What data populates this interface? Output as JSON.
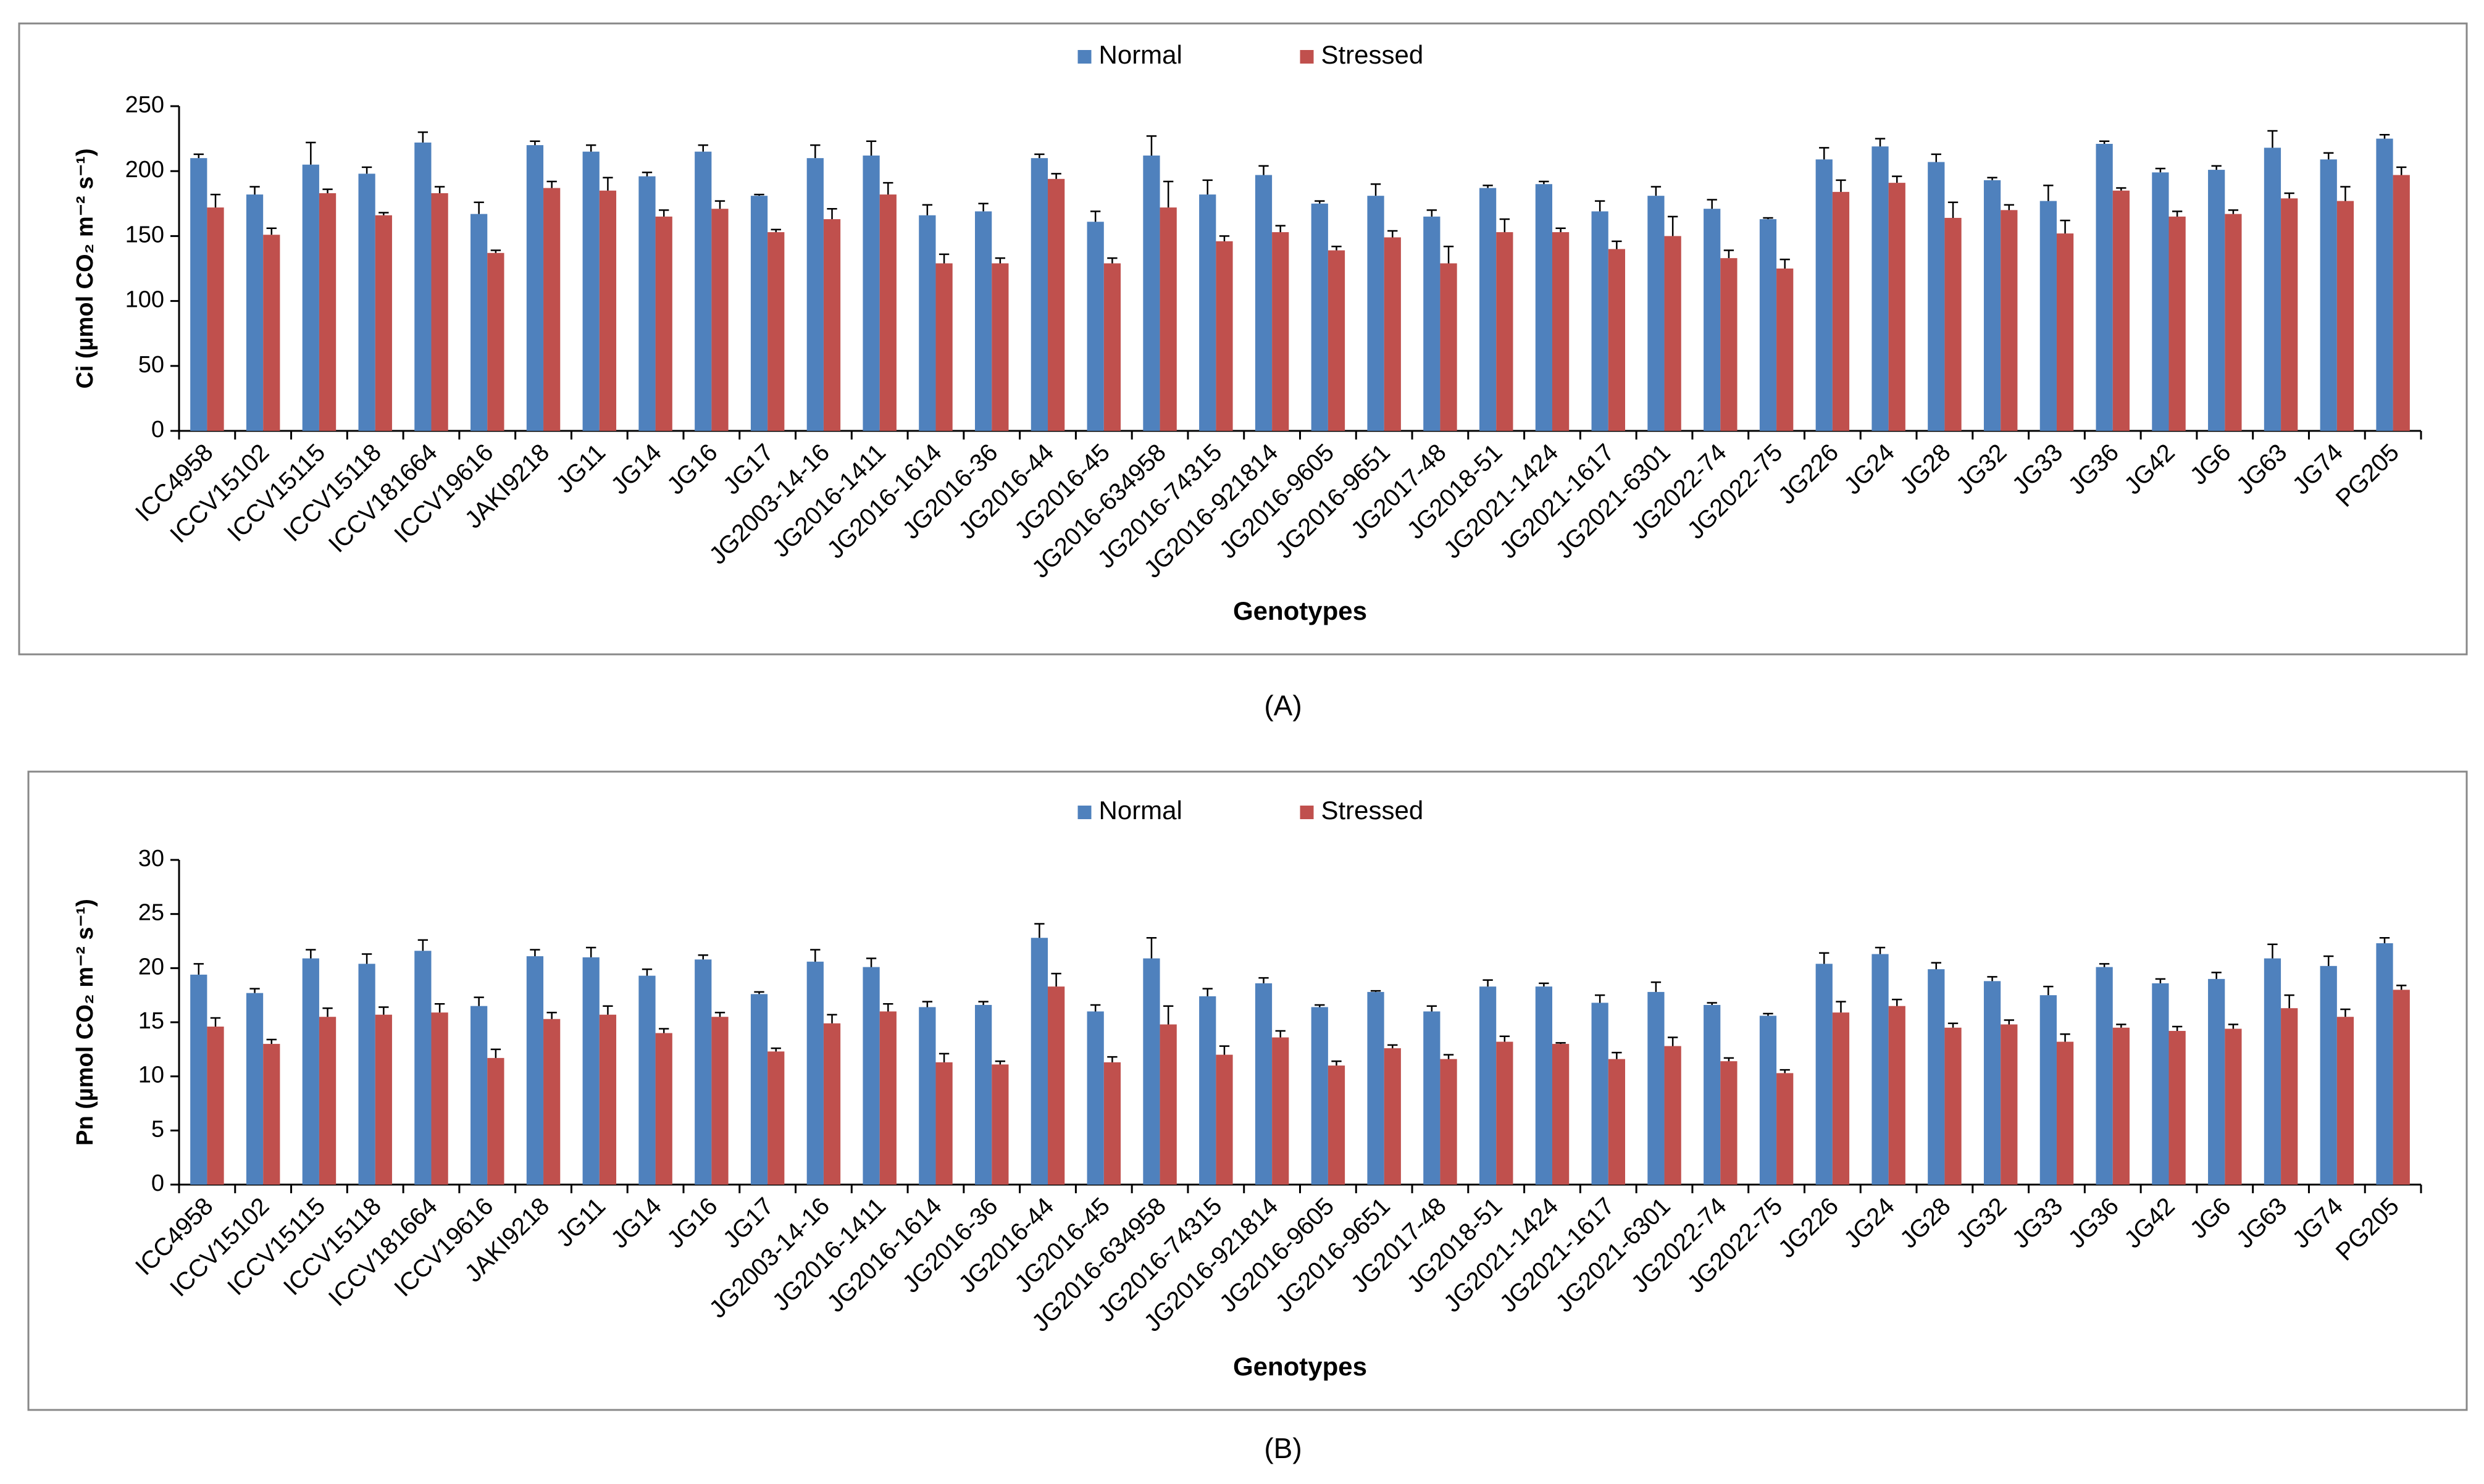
{
  "chart_data": [
    {
      "type": "bar",
      "y_label": "Ci (µmol CO₂ m⁻² s⁻¹)",
      "x_label": "Genotypes",
      "caption": "(A)",
      "categories": [
        "ICC4958",
        "ICCV15102",
        "ICCV15115",
        "ICCV15118",
        "ICCV181664",
        "ICCV19616",
        "JAKI9218",
        "JG11",
        "JG14",
        "JG16",
        "JG17",
        "JG2003-14-16",
        "JG2016-1411",
        "JG2016-1614",
        "JG2016-36",
        "JG2016-44",
        "JG2016-45",
        "JG2016-634958",
        "JG2016-74315",
        "JG2016-921814",
        "JG2016-9605",
        "JG2016-9651",
        "JG2017-48",
        "JG2018-51",
        "JG2021-1424",
        "JG2021-1617",
        "JG2021-6301",
        "JG2022-74",
        "JG2022-75",
        "JG226",
        "JG24",
        "JG28",
        "JG32",
        "JG33",
        "JG36",
        "JG42",
        "JG6",
        "JG63",
        "JG74",
        "PG205"
      ],
      "series": [
        {
          "name": "Normal",
          "color": "#4f81bd",
          "values": [
            210,
            182,
            205,
            198,
            222,
            167,
            220,
            215,
            196,
            215,
            181,
            210,
            212,
            166,
            169,
            210,
            161,
            212,
            182,
            197,
            175,
            181,
            165,
            187,
            190,
            169,
            181,
            171,
            163,
            209,
            219,
            207,
            193,
            177,
            221,
            199,
            201,
            218,
            209,
            225
          ],
          "errors": [
            3,
            6,
            17,
            5,
            8,
            9,
            3,
            5,
            3,
            5,
            1,
            10,
            11,
            8,
            6,
            3,
            8,
            15,
            11,
            7,
            2,
            9,
            5,
            2,
            2,
            8,
            7,
            7,
            1,
            9,
            6,
            6,
            2,
            12,
            2,
            3,
            3,
            13,
            5,
            3
          ]
        },
        {
          "name": "Stressed",
          "color": "#c0504d",
          "values": [
            172,
            151,
            183,
            166,
            183,
            137,
            187,
            185,
            165,
            171,
            153,
            163,
            182,
            129,
            129,
            194,
            129,
            172,
            146,
            153,
            139,
            149,
            129,
            153,
            153,
            140,
            150,
            133,
            125,
            184,
            191,
            164,
            170,
            152,
            185,
            165,
            167,
            179,
            177,
            197
          ],
          "errors": [
            10,
            5,
            3,
            2,
            5,
            2,
            5,
            10,
            5,
            6,
            2,
            8,
            9,
            7,
            4,
            4,
            4,
            20,
            4,
            5,
            3,
            5,
            13,
            10,
            3,
            6,
            15,
            6,
            7,
            9,
            5,
            12,
            4,
            10,
            2,
            4,
            3,
            4,
            11,
            6
          ]
        }
      ],
      "ylim": [
        0,
        250
      ],
      "yticks": [
        0,
        50,
        100,
        150,
        200,
        250
      ],
      "legend": "top"
    },
    {
      "type": "bar",
      "y_label": "Pn (µmol CO₂ m⁻² s⁻¹)",
      "x_label": "Genotypes",
      "caption": "(B)",
      "categories": [
        "ICC4958",
        "ICCV15102",
        "ICCV15115",
        "ICCV15118",
        "ICCV181664",
        "ICCV19616",
        "JAKI9218",
        "JG11",
        "JG14",
        "JG16",
        "JG17",
        "JG2003-14-16",
        "JG2016-1411",
        "JG2016-1614",
        "JG2016-36",
        "JG2016-44",
        "JG2016-45",
        "JG2016-634958",
        "JG2016-74315",
        "JG2016-921814",
        "JG2016-9605",
        "JG2016-9651",
        "JG2017-48",
        "JG2018-51",
        "JG2021-1424",
        "JG2021-1617",
        "JG2021-6301",
        "JG2022-74",
        "JG2022-75",
        "JG226",
        "JG24",
        "JG28",
        "JG32",
        "JG33",
        "JG36",
        "JG42",
        "JG6",
        "JG63",
        "JG74",
        "PG205"
      ],
      "series": [
        {
          "name": "Normal",
          "color": "#4f81bd",
          "values": [
            19.4,
            17.7,
            20.9,
            20.4,
            21.6,
            16.5,
            21.1,
            21.0,
            19.3,
            20.8,
            17.6,
            20.6,
            20.1,
            16.4,
            16.6,
            22.8,
            16.0,
            20.9,
            17.4,
            18.6,
            16.4,
            17.8,
            16.0,
            18.3,
            18.3,
            16.8,
            17.8,
            16.6,
            15.6,
            20.4,
            21.3,
            19.9,
            18.8,
            17.5,
            20.1,
            18.6,
            19.0,
            20.9,
            20.2,
            22.3
          ],
          "errors": [
            1.0,
            0.4,
            0.8,
            0.9,
            1.0,
            0.8,
            0.6,
            0.9,
            0.6,
            0.4,
            0.2,
            1.1,
            0.8,
            0.5,
            0.3,
            1.3,
            0.6,
            1.9,
            0.7,
            0.5,
            0.2,
            0.1,
            0.5,
            0.6,
            0.3,
            0.7,
            0.9,
            0.2,
            0.2,
            1.0,
            0.6,
            0.6,
            0.4,
            0.8,
            0.3,
            0.4,
            0.6,
            1.3,
            0.9,
            0.5
          ]
        },
        {
          "name": "Stressed",
          "color": "#c0504d",
          "values": [
            14.6,
            13.0,
            15.5,
            15.7,
            15.9,
            11.7,
            15.3,
            15.7,
            14.0,
            15.5,
            12.3,
            14.9,
            16.0,
            11.3,
            11.1,
            18.3,
            11.3,
            14.8,
            12.0,
            13.6,
            11.0,
            12.6,
            11.6,
            13.2,
            13.0,
            11.6,
            12.8,
            11.4,
            10.3,
            15.9,
            16.5,
            14.5,
            14.8,
            13.2,
            14.5,
            14.2,
            14.4,
            16.3,
            15.5,
            18.0
          ],
          "errors": [
            0.8,
            0.4,
            0.8,
            0.7,
            0.8,
            0.8,
            0.6,
            0.8,
            0.4,
            0.4,
            0.3,
            0.8,
            0.7,
            0.8,
            0.3,
            1.2,
            0.5,
            1.7,
            0.8,
            0.6,
            0.4,
            0.3,
            0.4,
            0.5,
            0.1,
            0.6,
            0.8,
            0.3,
            0.3,
            1.0,
            0.6,
            0.4,
            0.4,
            0.7,
            0.3,
            0.4,
            0.4,
            1.2,
            0.7,
            0.4
          ]
        }
      ],
      "ylim": [
        0,
        30
      ],
      "yticks": [
        0,
        5,
        10,
        15,
        20,
        25,
        30
      ],
      "legend": "top"
    }
  ]
}
